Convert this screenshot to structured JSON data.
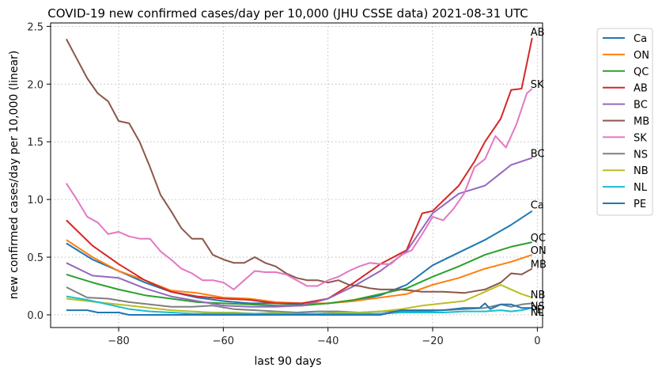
{
  "chart_data": {
    "type": "line",
    "title": "COVID-19 new confirmed cases/day per 10,000 (JHU CSSE data) 2021-08-31 UTC",
    "xlabel": "last 90 days",
    "ylabel": "new confirmed cases/day per 10,000 (linear)",
    "xlim": [
      -93,
      1
    ],
    "ylim": [
      -0.11,
      2.53
    ],
    "xticks": [
      -80,
      -60,
      -40,
      -20,
      0
    ],
    "xtick_labels": [
      "−80",
      "−60",
      "−40",
      "−20",
      "0"
    ],
    "yticks": [
      0.0,
      0.5,
      1.0,
      1.5,
      2.0,
      2.5
    ],
    "ytick_labels": [
      "0.0",
      "0.5",
      "1.0",
      "1.5",
      "2.0",
      "2.5"
    ],
    "grid": true,
    "legend_position": "outside-right-top",
    "series": [
      {
        "name": "Ca",
        "label": "Ca",
        "color": "#1f77b4",
        "points": [
          [
            -90,
            0.62
          ],
          [
            -85,
            0.48
          ],
          [
            -80,
            0.38
          ],
          [
            -75,
            0.28
          ],
          [
            -70,
            0.2
          ],
          [
            -65,
            0.15
          ],
          [
            -60,
            0.12
          ],
          [
            -55,
            0.1
          ],
          [
            -50,
            0.1
          ],
          [
            -45,
            0.09
          ],
          [
            -40,
            0.1
          ],
          [
            -35,
            0.12
          ],
          [
            -30,
            0.17
          ],
          [
            -25,
            0.26
          ],
          [
            -20,
            0.43
          ],
          [
            -15,
            0.54
          ],
          [
            -10,
            0.65
          ],
          [
            -5,
            0.78
          ],
          [
            -1,
            0.9
          ]
        ]
      },
      {
        "name": "ON",
        "label": "ON",
        "color": "#ff7f0e",
        "points": [
          [
            -90,
            0.65
          ],
          [
            -85,
            0.5
          ],
          [
            -80,
            0.38
          ],
          [
            -75,
            0.3
          ],
          [
            -70,
            0.21
          ],
          [
            -65,
            0.19
          ],
          [
            -60,
            0.15
          ],
          [
            -55,
            0.14
          ],
          [
            -50,
            0.11
          ],
          [
            -45,
            0.1
          ],
          [
            -40,
            0.1
          ],
          [
            -35,
            0.12
          ],
          [
            -30,
            0.15
          ],
          [
            -25,
            0.18
          ],
          [
            -20,
            0.26
          ],
          [
            -15,
            0.32
          ],
          [
            -10,
            0.4
          ],
          [
            -5,
            0.46
          ],
          [
            -1,
            0.52
          ]
        ]
      },
      {
        "name": "QC",
        "label": "QC",
        "color": "#2ca02c",
        "points": [
          [
            -90,
            0.35
          ],
          [
            -85,
            0.28
          ],
          [
            -80,
            0.22
          ],
          [
            -75,
            0.17
          ],
          [
            -70,
            0.14
          ],
          [
            -65,
            0.11
          ],
          [
            -60,
            0.1
          ],
          [
            -55,
            0.09
          ],
          [
            -50,
            0.08
          ],
          [
            -45,
            0.08
          ],
          [
            -40,
            0.1
          ],
          [
            -35,
            0.13
          ],
          [
            -30,
            0.18
          ],
          [
            -25,
            0.23
          ],
          [
            -20,
            0.33
          ],
          [
            -15,
            0.42
          ],
          [
            -10,
            0.52
          ],
          [
            -5,
            0.59
          ],
          [
            -1,
            0.63
          ]
        ]
      },
      {
        "name": "AB",
        "label": "AB",
        "color": "#d62728",
        "points": [
          [
            -90,
            0.82
          ],
          [
            -85,
            0.6
          ],
          [
            -80,
            0.44
          ],
          [
            -75,
            0.3
          ],
          [
            -70,
            0.2
          ],
          [
            -65,
            0.16
          ],
          [
            -60,
            0.14
          ],
          [
            -55,
            0.13
          ],
          [
            -50,
            0.1
          ],
          [
            -45,
            0.1
          ],
          [
            -40,
            0.14
          ],
          [
            -35,
            0.28
          ],
          [
            -30,
            0.44
          ],
          [
            -25,
            0.56
          ],
          [
            -22,
            0.88
          ],
          [
            -20,
            0.9
          ],
          [
            -15,
            1.12
          ],
          [
            -12,
            1.33
          ],
          [
            -10,
            1.5
          ],
          [
            -7,
            1.7
          ],
          [
            -5,
            1.95
          ],
          [
            -3,
            1.96
          ],
          [
            -1,
            2.4
          ]
        ]
      },
      {
        "name": "BC",
        "label": "BC",
        "color": "#9467bd",
        "points": [
          [
            -90,
            0.45
          ],
          [
            -85,
            0.34
          ],
          [
            -80,
            0.32
          ],
          [
            -75,
            0.23
          ],
          [
            -70,
            0.16
          ],
          [
            -65,
            0.12
          ],
          [
            -60,
            0.08
          ],
          [
            -55,
            0.07
          ],
          [
            -50,
            0.07
          ],
          [
            -45,
            0.08
          ],
          [
            -40,
            0.14
          ],
          [
            -35,
            0.25
          ],
          [
            -30,
            0.38
          ],
          [
            -25,
            0.55
          ],
          [
            -20,
            0.88
          ],
          [
            -15,
            1.05
          ],
          [
            -10,
            1.12
          ],
          [
            -5,
            1.3
          ],
          [
            -1,
            1.36
          ]
        ]
      },
      {
        "name": "MB",
        "label": "MB",
        "color": "#8c564b",
        "points": [
          [
            -90,
            2.39
          ],
          [
            -88,
            2.22
          ],
          [
            -86,
            2.05
          ],
          [
            -84,
            1.92
          ],
          [
            -82,
            1.85
          ],
          [
            -80,
            1.68
          ],
          [
            -78,
            1.66
          ],
          [
            -76,
            1.5
          ],
          [
            -74,
            1.28
          ],
          [
            -72,
            1.04
          ],
          [
            -70,
            0.9
          ],
          [
            -68,
            0.75
          ],
          [
            -66,
            0.66
          ],
          [
            -64,
            0.66
          ],
          [
            -62,
            0.52
          ],
          [
            -60,
            0.48
          ],
          [
            -58,
            0.45
          ],
          [
            -56,
            0.45
          ],
          [
            -54,
            0.5
          ],
          [
            -52,
            0.45
          ],
          [
            -50,
            0.42
          ],
          [
            -48,
            0.36
          ],
          [
            -46,
            0.32
          ],
          [
            -44,
            0.3
          ],
          [
            -42,
            0.3
          ],
          [
            -40,
            0.28
          ],
          [
            -38,
            0.3
          ],
          [
            -36,
            0.26
          ],
          [
            -34,
            0.25
          ],
          [
            -32,
            0.23
          ],
          [
            -30,
            0.22
          ],
          [
            -26,
            0.22
          ],
          [
            -22,
            0.2
          ],
          [
            -18,
            0.2
          ],
          [
            -14,
            0.19
          ],
          [
            -10,
            0.22
          ],
          [
            -7,
            0.28
          ],
          [
            -5,
            0.36
          ],
          [
            -3,
            0.35
          ],
          [
            -1,
            0.4
          ]
        ]
      },
      {
        "name": "SK",
        "label": "SK",
        "color": "#e377c2",
        "points": [
          [
            -90,
            1.14
          ],
          [
            -88,
            1.0
          ],
          [
            -86,
            0.85
          ],
          [
            -84,
            0.8
          ],
          [
            -82,
            0.7
          ],
          [
            -80,
            0.72
          ],
          [
            -78,
            0.68
          ],
          [
            -76,
            0.66
          ],
          [
            -74,
            0.66
          ],
          [
            -72,
            0.55
          ],
          [
            -70,
            0.48
          ],
          [
            -68,
            0.4
          ],
          [
            -66,
            0.36
          ],
          [
            -64,
            0.3
          ],
          [
            -62,
            0.3
          ],
          [
            -60,
            0.28
          ],
          [
            -58,
            0.22
          ],
          [
            -56,
            0.3
          ],
          [
            -54,
            0.38
          ],
          [
            -52,
            0.37
          ],
          [
            -50,
            0.37
          ],
          [
            -48,
            0.35
          ],
          [
            -46,
            0.3
          ],
          [
            -44,
            0.25
          ],
          [
            -42,
            0.25
          ],
          [
            -40,
            0.3
          ],
          [
            -38,
            0.33
          ],
          [
            -36,
            0.38
          ],
          [
            -34,
            0.42
          ],
          [
            -32,
            0.45
          ],
          [
            -30,
            0.44
          ],
          [
            -28,
            0.44
          ],
          [
            -26,
            0.52
          ],
          [
            -24,
            0.56
          ],
          [
            -22,
            0.7
          ],
          [
            -20,
            0.85
          ],
          [
            -18,
            0.82
          ],
          [
            -16,
            0.92
          ],
          [
            -14,
            1.05
          ],
          [
            -12,
            1.28
          ],
          [
            -10,
            1.35
          ],
          [
            -8,
            1.55
          ],
          [
            -6,
            1.45
          ],
          [
            -4,
            1.65
          ],
          [
            -2,
            1.92
          ],
          [
            -1,
            1.96
          ]
        ]
      },
      {
        "name": "NS",
        "label": "NS",
        "color": "#7f7f7f",
        "points": [
          [
            -90,
            0.24
          ],
          [
            -86,
            0.15
          ],
          [
            -82,
            0.14
          ],
          [
            -78,
            0.11
          ],
          [
            -74,
            0.09
          ],
          [
            -70,
            0.07
          ],
          [
            -66,
            0.07
          ],
          [
            -62,
            0.08
          ],
          [
            -58,
            0.05
          ],
          [
            -54,
            0.04
          ],
          [
            -50,
            0.03
          ],
          [
            -46,
            0.02
          ],
          [
            -42,
            0.03
          ],
          [
            -38,
            0.03
          ],
          [
            -34,
            0.02
          ],
          [
            -30,
            0.03
          ],
          [
            -26,
            0.03
          ],
          [
            -22,
            0.03
          ],
          [
            -18,
            0.04
          ],
          [
            -14,
            0.05
          ],
          [
            -10,
            0.06
          ],
          [
            -7,
            0.09
          ],
          [
            -5,
            0.07
          ],
          [
            -3,
            0.09
          ],
          [
            -1,
            0.1
          ]
        ]
      },
      {
        "name": "NB",
        "label": "NB",
        "color": "#bcbd22",
        "points": [
          [
            -90,
            0.14
          ],
          [
            -86,
            0.12
          ],
          [
            -82,
            0.1
          ],
          [
            -78,
            0.08
          ],
          [
            -74,
            0.06
          ],
          [
            -70,
            0.04
          ],
          [
            -66,
            0.03
          ],
          [
            -62,
            0.02
          ],
          [
            -58,
            0.02
          ],
          [
            -54,
            0.01
          ],
          [
            -50,
            0.02
          ],
          [
            -46,
            0.01
          ],
          [
            -42,
            0.01
          ],
          [
            -38,
            0.02
          ],
          [
            -34,
            0.02
          ],
          [
            -30,
            0.03
          ],
          [
            -26,
            0.05
          ],
          [
            -22,
            0.08
          ],
          [
            -18,
            0.1
          ],
          [
            -14,
            0.12
          ],
          [
            -10,
            0.2
          ],
          [
            -7,
            0.26
          ],
          [
            -5,
            0.22
          ],
          [
            -3,
            0.18
          ],
          [
            -1,
            0.15
          ]
        ]
      },
      {
        "name": "NL",
        "label": "NL",
        "color": "#17becf",
        "points": [
          [
            -90,
            0.16
          ],
          [
            -86,
            0.13
          ],
          [
            -82,
            0.09
          ],
          [
            -78,
            0.05
          ],
          [
            -74,
            0.03
          ],
          [
            -70,
            0.02
          ],
          [
            -66,
            0.01
          ],
          [
            -62,
            0.01
          ],
          [
            -58,
            0.01
          ],
          [
            -54,
            0.01
          ],
          [
            -50,
            0.01
          ],
          [
            -46,
            0.01
          ],
          [
            -42,
            0.01
          ],
          [
            -38,
            0.01
          ],
          [
            -34,
            0.01
          ],
          [
            -30,
            0.01
          ],
          [
            -26,
            0.02
          ],
          [
            -22,
            0.02
          ],
          [
            -18,
            0.02
          ],
          [
            -14,
            0.03
          ],
          [
            -10,
            0.03
          ],
          [
            -7,
            0.04
          ],
          [
            -5,
            0.03
          ],
          [
            -3,
            0.04
          ],
          [
            -1,
            0.06
          ]
        ]
      },
      {
        "name": "PE",
        "label": "PE",
        "color": "#1f77b4",
        "points": [
          [
            -90,
            0.04
          ],
          [
            -86,
            0.04
          ],
          [
            -84,
            0.02
          ],
          [
            -80,
            0.02
          ],
          [
            -78,
            0.0
          ],
          [
            -74,
            0.0
          ],
          [
            -70,
            0.0
          ],
          [
            -66,
            0.0
          ],
          [
            -62,
            0.0
          ],
          [
            -58,
            0.0
          ],
          [
            -54,
            0.0
          ],
          [
            -50,
            0.0
          ],
          [
            -46,
            0.0
          ],
          [
            -42,
            0.0
          ],
          [
            -38,
            0.0
          ],
          [
            -34,
            0.0
          ],
          [
            -30,
            0.0
          ],
          [
            -26,
            0.04
          ],
          [
            -22,
            0.04
          ],
          [
            -18,
            0.04
          ],
          [
            -14,
            0.06
          ],
          [
            -11,
            0.06
          ],
          [
            -10,
            0.1
          ],
          [
            -9,
            0.05
          ],
          [
            -7,
            0.09
          ],
          [
            -5,
            0.09
          ],
          [
            -3,
            0.06
          ],
          [
            -1,
            0.06
          ]
        ]
      }
    ]
  }
}
